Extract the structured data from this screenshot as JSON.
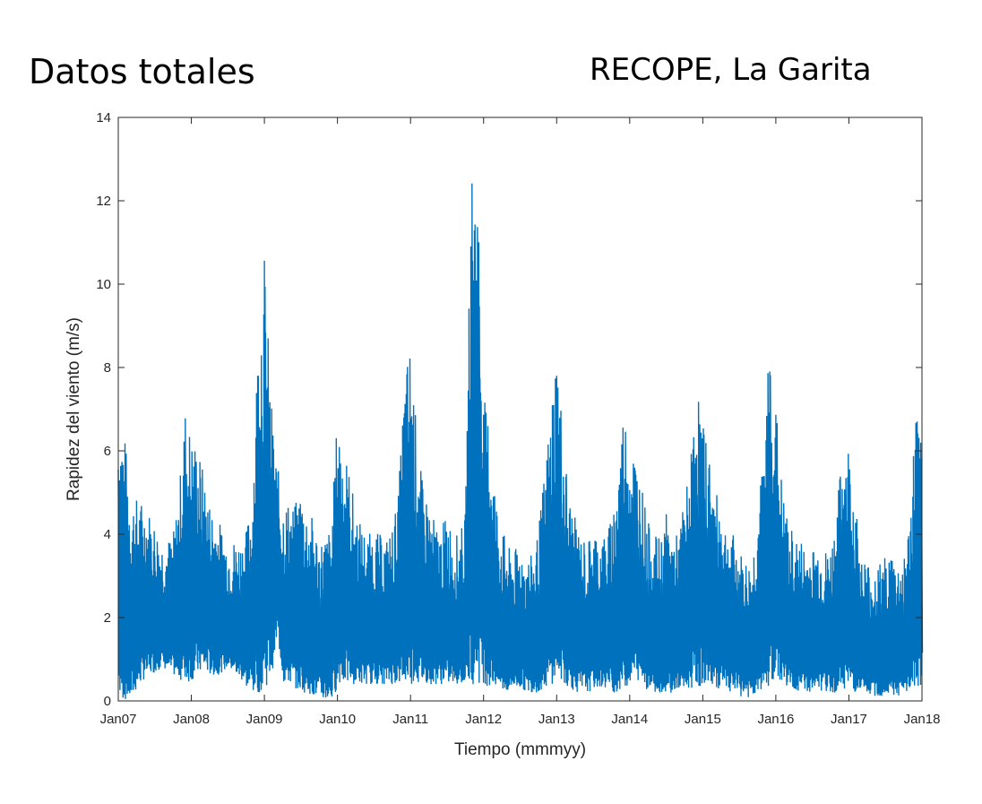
{
  "header": {
    "left_title": "Datos totales",
    "right_title": "RECOPE, La Garita"
  },
  "chart_data": {
    "type": "line",
    "xlabel": "Tiempo (mmmyy)",
    "ylabel": "Rapidez del viento (m/s)",
    "ylim": [
      0,
      14
    ],
    "xlim": [
      "Jan07",
      "Jan18"
    ],
    "x_ticks": [
      "Jan07",
      "Jan08",
      "Jan09",
      "Jan10",
      "Jan11",
      "Jan12",
      "Jan13",
      "Jan14",
      "Jan15",
      "Jan16",
      "Jan17",
      "Jan18"
    ],
    "y_ticks": [
      0,
      2,
      4,
      6,
      8,
      10,
      12,
      14
    ],
    "grid": false,
    "line_color": "#0072BD",
    "series": [
      {
        "x": [
          "Jan07",
          "Feb07",
          "Mar07",
          "Apr07",
          "May07",
          "Jun07",
          "Jul07",
          "Aug07",
          "Sep07",
          "Oct07",
          "Nov07",
          "Dec07",
          "Jan08",
          "Feb08",
          "Mar08",
          "Apr08",
          "May08",
          "Jun08",
          "Jul08",
          "Aug08",
          "Sep08",
          "Oct08",
          "Nov08",
          "Dec08",
          "Jan09",
          "Feb09",
          "Mar09",
          "Apr09",
          "May09",
          "Jun09",
          "Jul09",
          "Aug09",
          "Sep09",
          "Oct09",
          "Nov09",
          "Dec09",
          "Jan10",
          "Feb10",
          "Mar10",
          "Apr10",
          "May10",
          "Jun10",
          "Jul10",
          "Aug10",
          "Sep10",
          "Oct10",
          "Nov10",
          "Dec10",
          "Jan11",
          "Feb11",
          "Mar11",
          "Apr11",
          "May11",
          "Jun11",
          "Jul11",
          "Aug11",
          "Sep11",
          "Oct11",
          "Nov11",
          "Dec11",
          "Jan12",
          "Feb12",
          "Mar12",
          "Apr12",
          "May12",
          "Jun12",
          "Jul12",
          "Aug12",
          "Sep12",
          "Oct12",
          "Nov12",
          "Dec12",
          "Jan13",
          "Feb13",
          "Mar13",
          "Apr13",
          "May13",
          "Jun13",
          "Jul13",
          "Aug13",
          "Sep13",
          "Oct13",
          "Nov13",
          "Dec13",
          "Jan14",
          "Feb14",
          "Mar14",
          "Apr14",
          "May14",
          "Jun14",
          "Jul14",
          "Aug14",
          "Sep14",
          "Oct14",
          "Nov14",
          "Dec14",
          "Jan15",
          "Feb15",
          "Mar15",
          "Apr15",
          "May15",
          "Jun15",
          "Jul15",
          "Aug15",
          "Sep15",
          "Oct15",
          "Nov15",
          "Dec15",
          "Jan16",
          "Feb16",
          "Mar16",
          "Apr16",
          "May16",
          "Jun16",
          "Jul16",
          "Aug16",
          "Sep16",
          "Oct16",
          "Nov16",
          "Dec16",
          "Jan17",
          "Feb17",
          "Mar17",
          "Apr17",
          "May17",
          "Jun17",
          "Jul17",
          "Aug17",
          "Sep17",
          "Oct17",
          "Nov17",
          "Dec17",
          "Jan18"
        ],
        "max": [
          7.2,
          6.5,
          5.0,
          4.9,
          4.8,
          4.6,
          4.3,
          3.9,
          3.9,
          4.0,
          5.1,
          7.1,
          6.4,
          6.2,
          5.5,
          4.8,
          4.5,
          4.2,
          3.8,
          3.9,
          3.9,
          4.1,
          5.0,
          9.2,
          10.8,
          7.5,
          5.8,
          4.9,
          4.8,
          4.7,
          5.2,
          4.6,
          4.4,
          3.9,
          4.0,
          4.2,
          7.0,
          6.2,
          5.5,
          4.6,
          4.2,
          4.0,
          4.1,
          4.0,
          3.9,
          4.2,
          5.0,
          7.8,
          8.7,
          6.5,
          5.2,
          4.8,
          4.3,
          4.1,
          4.6,
          4.0,
          4.0,
          4.5,
          12.9,
          13.0,
          7.3,
          6.8,
          5.0,
          4.2,
          3.7,
          3.6,
          3.8,
          3.5,
          3.5,
          4.1,
          5.5,
          7.0,
          8.7,
          6.6,
          5.0,
          4.4,
          4.0,
          3.8,
          4.2,
          4.0,
          4.0,
          4.4,
          5.6,
          7.1,
          6.4,
          6.0,
          5.2,
          4.3,
          4.0,
          3.9,
          4.5,
          4.0,
          4.0,
          4.9,
          5.8,
          7.8,
          6.7,
          6.1,
          5.0,
          4.8,
          4.1,
          4.0,
          3.6,
          3.4,
          3.3,
          4.6,
          5.9,
          9.0,
          7.2,
          5.2,
          4.3,
          4.0,
          3.9,
          3.7,
          3.7,
          3.8,
          3.6,
          3.7,
          4.6,
          6.2,
          6.2,
          4.9,
          3.5,
          3.4,
          3.2,
          3.3,
          3.5,
          3.6,
          3.3,
          3.5,
          4.4,
          7.2,
          6.0
        ],
        "min": [
          0.0,
          0.0,
          0.0,
          0.3,
          0.5,
          0.6,
          0.7,
          0.8,
          0.7,
          0.6,
          0.5,
          0.4,
          0.5,
          0.6,
          0.7,
          0.6,
          0.6,
          0.7,
          0.8,
          0.6,
          0.5,
          0.3,
          0.2,
          0.2,
          0.3,
          0.6,
          1.5,
          0.4,
          0.4,
          0.3,
          0.2,
          0.2,
          0.1,
          0.0,
          0.0,
          0.0,
          0.4,
          0.4,
          0.4,
          0.4,
          0.4,
          0.4,
          0.4,
          0.4,
          0.4,
          0.4,
          0.4,
          0.4,
          0.4,
          0.4,
          0.4,
          0.4,
          0.4,
          0.4,
          0.4,
          0.4,
          0.4,
          0.4,
          0.4,
          0.4,
          0.4,
          0.3,
          0.3,
          0.2,
          0.2,
          0.3,
          0.3,
          0.2,
          0.2,
          0.2,
          0.3,
          0.4,
          0.5,
          0.4,
          0.3,
          0.2,
          0.2,
          0.2,
          0.3,
          0.3,
          0.3,
          0.2,
          0.2,
          0.3,
          0.4,
          0.5,
          0.4,
          0.2,
          0.2,
          0.2,
          0.2,
          0.2,
          0.2,
          0.2,
          0.3,
          0.3,
          0.4,
          0.4,
          0.3,
          0.3,
          0.2,
          0.2,
          0.1,
          0.1,
          0.0,
          0.2,
          0.3,
          0.4,
          0.5,
          0.4,
          0.3,
          0.2,
          0.2,
          0.2,
          0.2,
          0.2,
          0.2,
          0.2,
          0.2,
          0.3,
          0.2,
          0.2,
          0.1,
          0.1,
          0.1,
          0.1,
          0.1,
          0.1,
          0.1,
          0.1,
          0.2,
          0.3,
          0.3
        ]
      }
    ]
  }
}
